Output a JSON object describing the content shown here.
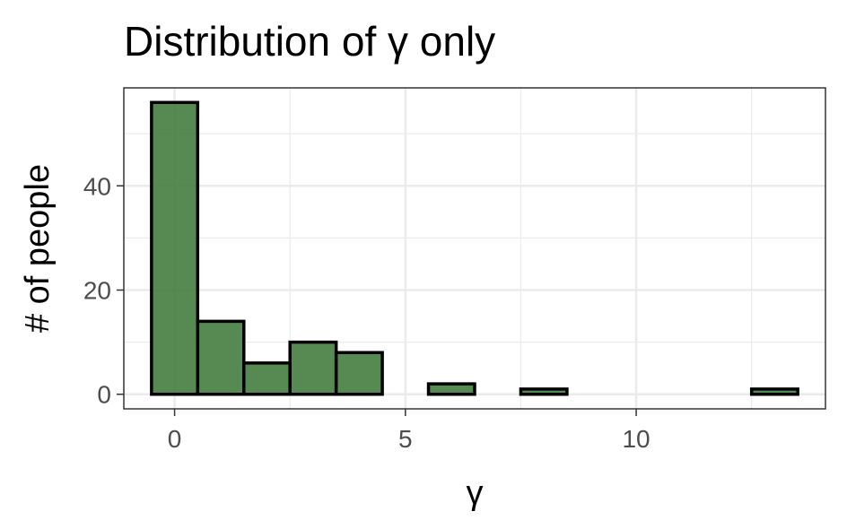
{
  "chart_data": {
    "type": "bar",
    "title": "Distribution of γ only",
    "xlabel": "γ",
    "ylabel": "# of people",
    "bin_width": 1,
    "x": [
      0,
      1,
      2,
      3,
      4,
      5,
      6,
      7,
      8,
      9,
      10,
      11,
      12,
      13
    ],
    "values": [
      56,
      14,
      6,
      10,
      8,
      0,
      2,
      0,
      1,
      0,
      0,
      0,
      0,
      1
    ],
    "xlim": [
      -1.1,
      14.1
    ],
    "ylim": [
      -2.8,
      58.8
    ],
    "x_ticks": [
      0,
      5,
      10
    ],
    "x_tick_labels": [
      "0",
      "5",
      "10"
    ],
    "y_ticks": [
      0,
      20,
      40
    ],
    "y_tick_labels": [
      "0",
      "20",
      "40"
    ],
    "x_minor_ticks": [
      2.5,
      7.5,
      12.5
    ],
    "y_minor_ticks": [
      10,
      30,
      50
    ],
    "grid": true,
    "fill_color": "#3f7a3a",
    "fill_opacity": 0.88,
    "edge_color": "#000000",
    "grid_color": "#ebebeb",
    "panel_border_color": "#333333"
  }
}
